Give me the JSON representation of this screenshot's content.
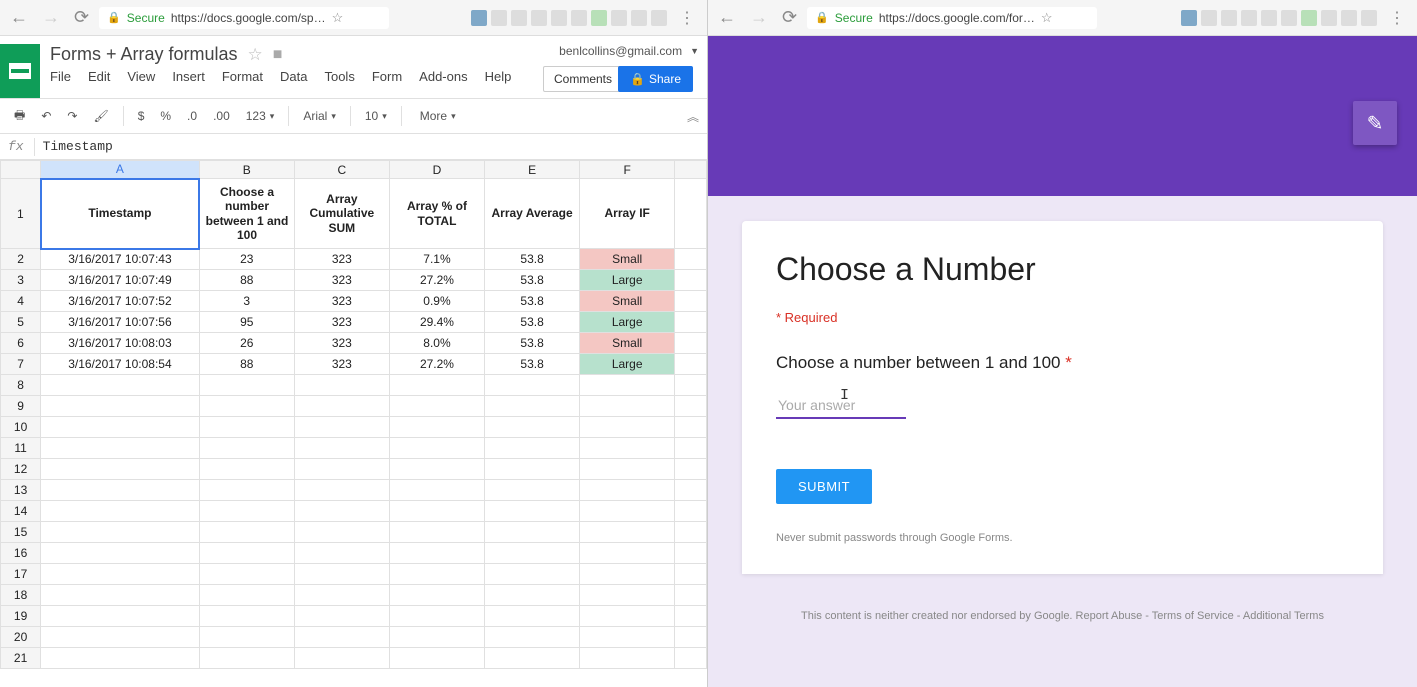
{
  "left": {
    "browser": {
      "secure": "Secure",
      "url": "https://docs.google.com/sp…"
    },
    "doc_title": "Forms + Array formulas",
    "email": "benlcollins@gmail.com",
    "menus": [
      "File",
      "Edit",
      "View",
      "Insert",
      "Format",
      "Data",
      "Tools",
      "Form",
      "Add-ons",
      "Help"
    ],
    "comments_btn": "Comments",
    "share_btn": "Share",
    "toolbar": {
      "font": "Arial",
      "size": "10",
      "more": "More"
    },
    "formula_bar": "Timestamp",
    "grid": {
      "col_letters": [
        "A",
        "B",
        "C",
        "D",
        "E",
        "F"
      ],
      "headers": [
        "Timestamp",
        "Choose a number between 1 and 100",
        "Array Cumulative SUM",
        "Array % of TOTAL",
        "Array Average",
        "Array IF"
      ],
      "rows": [
        {
          "n": "2",
          "ts": "3/16/2017 10:07:43",
          "num": "23",
          "sum": "323",
          "pct": "7.1%",
          "avg": "53.8",
          "if": "Small",
          "cls": "small-cell"
        },
        {
          "n": "3",
          "ts": "3/16/2017 10:07:49",
          "num": "88",
          "sum": "323",
          "pct": "27.2%",
          "avg": "53.8",
          "if": "Large",
          "cls": "large-cell"
        },
        {
          "n": "4",
          "ts": "3/16/2017 10:07:52",
          "num": "3",
          "sum": "323",
          "pct": "0.9%",
          "avg": "53.8",
          "if": "Small",
          "cls": "small-cell"
        },
        {
          "n": "5",
          "ts": "3/16/2017 10:07:56",
          "num": "95",
          "sum": "323",
          "pct": "29.4%",
          "avg": "53.8",
          "if": "Large",
          "cls": "large-cell"
        },
        {
          "n": "6",
          "ts": "3/16/2017 10:08:03",
          "num": "26",
          "sum": "323",
          "pct": "8.0%",
          "avg": "53.8",
          "if": "Small",
          "cls": "small-cell"
        },
        {
          "n": "7",
          "ts": "3/16/2017 10:08:54",
          "num": "88",
          "sum": "323",
          "pct": "27.2%",
          "avg": "53.8",
          "if": "Large",
          "cls": "large-cell"
        }
      ],
      "empty_rows": [
        "8",
        "9",
        "10",
        "11",
        "12",
        "13",
        "14",
        "15",
        "16",
        "17",
        "18",
        "19",
        "20",
        "21"
      ],
      "colors": {
        "small_bg": "#f4c7c3",
        "small_fg": "#c5221f",
        "large_bg": "#b7e1cd",
        "large_fg": "#0f7b3e",
        "selected_border": "#3b78e7",
        "grid_border": "#e0e0e0"
      }
    }
  },
  "right": {
    "browser": {
      "secure": "Secure",
      "url": "https://docs.google.com/for…"
    },
    "hero_color": "#673ab7",
    "body_bg": "#ede7f6",
    "form": {
      "title": "Choose a Number",
      "required_note": "* Required",
      "question": "Choose a number between 1 and 100",
      "asterisk": "*",
      "placeholder": "Your answer",
      "submit": "SUBMIT",
      "password_note": "Never submit passwords through Google Forms.",
      "footer": "This content is neither created nor endorsed by Google. Report Abuse - Terms of Service - Additional Terms"
    }
  }
}
